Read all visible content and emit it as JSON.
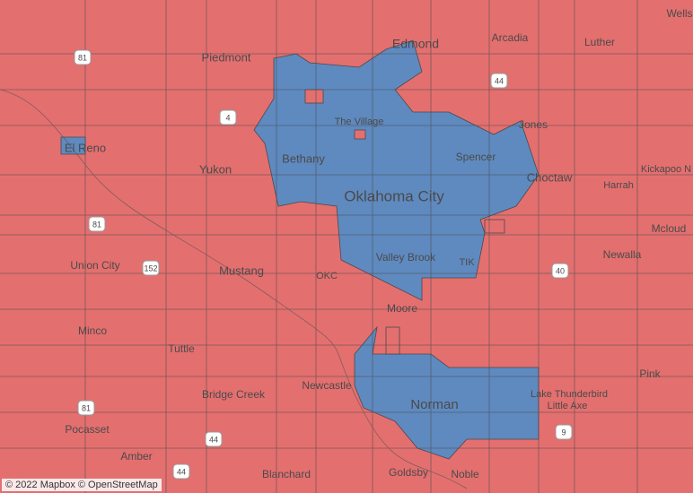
{
  "map": {
    "labels": [
      "Wells",
      "Edmond",
      "Arcadia",
      "Luther",
      "Piedmont",
      "El Reno",
      "The Village",
      "Jones",
      "Yukon",
      "Bethany",
      "Spencer",
      "Choctaw",
      "Kickapoo N",
      "Harrah",
      "Oklahoma City",
      "Mcloud",
      "Union City",
      "Mustang",
      "Valley Brook",
      "TIK",
      "OKC",
      "Newalla",
      "Moore",
      "Minco",
      "Tuttle",
      "Pink",
      "Newcastle",
      "Bridge Creek",
      "Lake Thunderbird",
      "Norman",
      "Little Axe",
      "Pocasset",
      "Amber",
      "Blanchard",
      "Goldsby",
      "Noble"
    ],
    "shields": [
      "81",
      "4",
      "44",
      "81",
      "152",
      "40",
      "81",
      "44",
      "44",
      "9"
    ],
    "attribution": "© 2022 Mapbox © OpenStreetMap"
  }
}
